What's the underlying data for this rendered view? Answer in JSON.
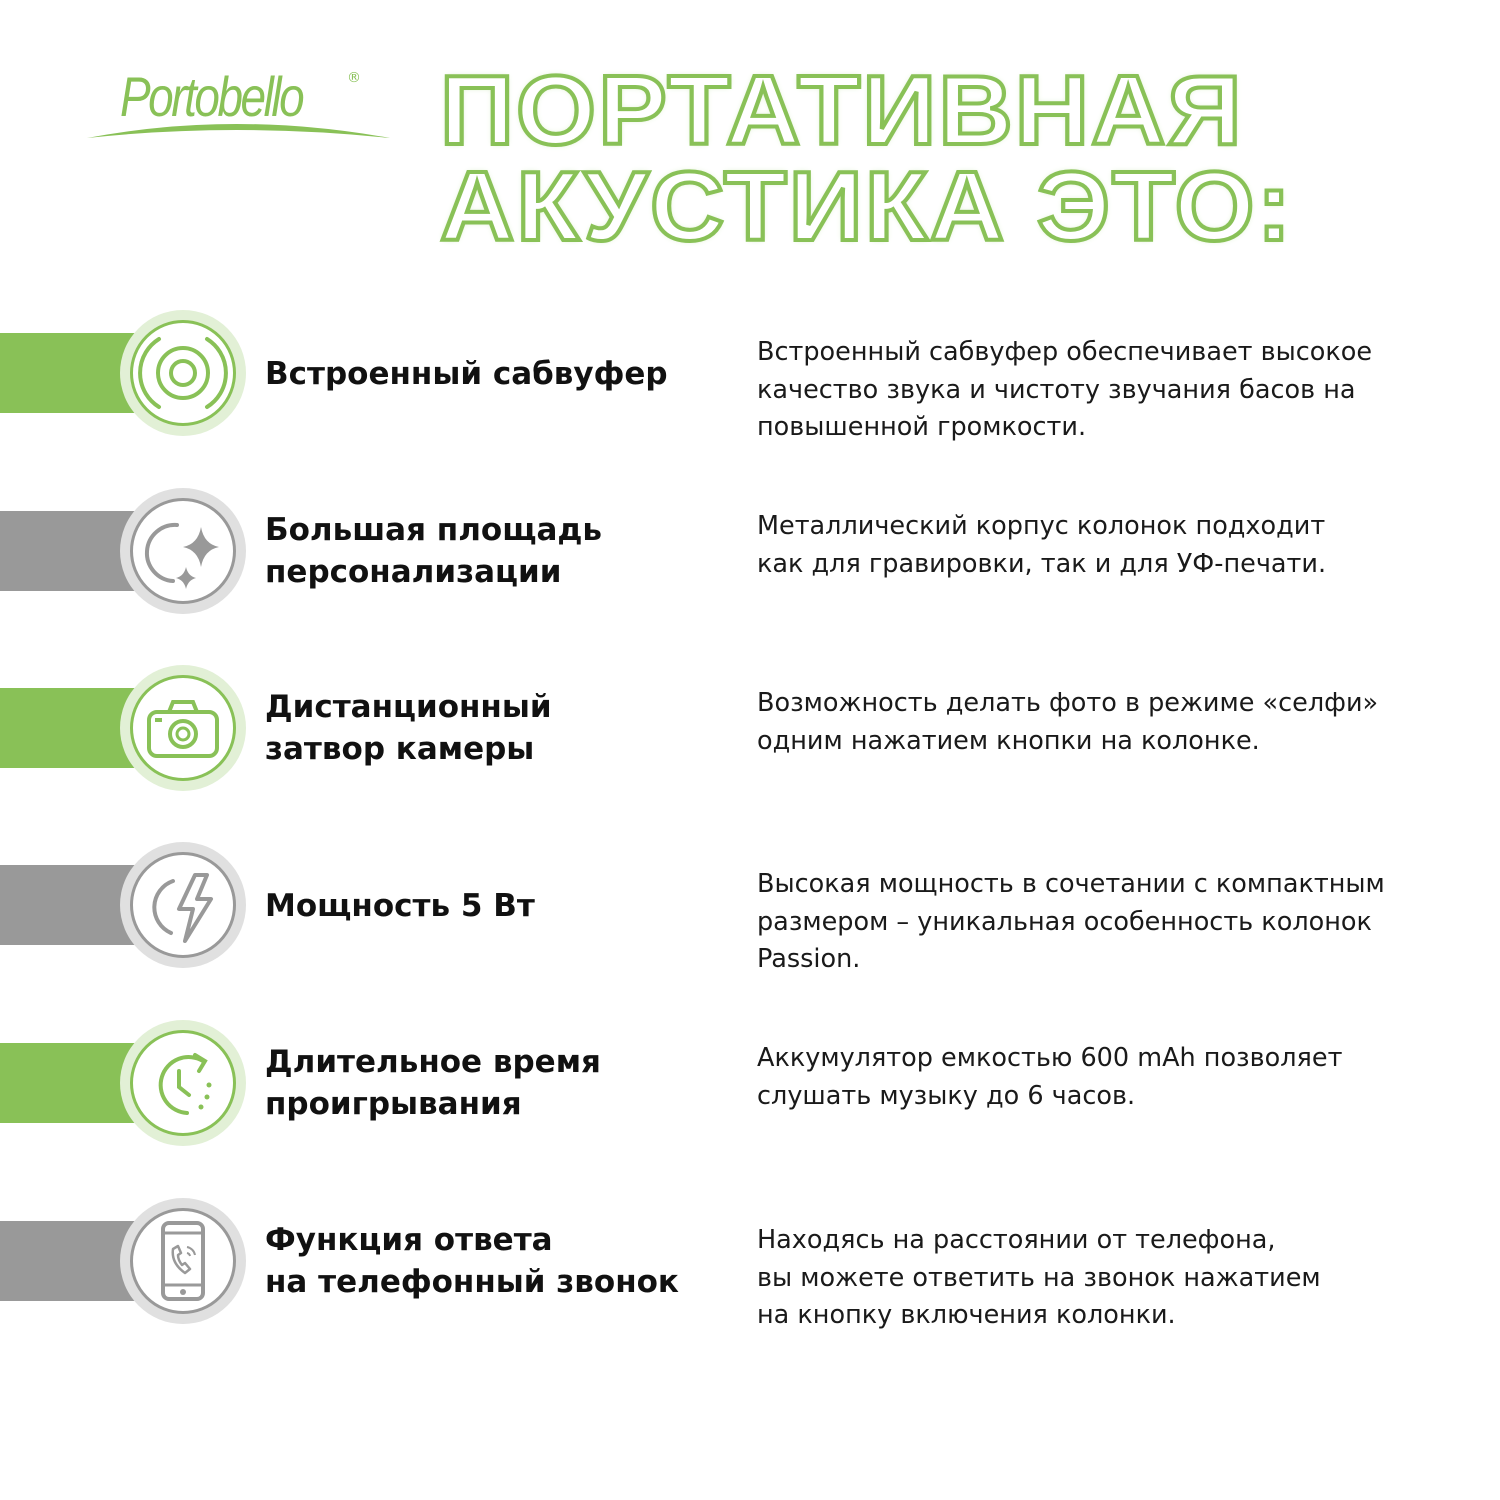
{
  "brand": {
    "logo_text": "Portobello",
    "registered": "®",
    "color": "#89c157"
  },
  "headline": {
    "line1": "ПОРТАТИВНАЯ",
    "line2": "АКУСТИКА ЭТО:"
  },
  "colors": {
    "green": "#89c157",
    "gray": "#999999"
  },
  "features": [
    {
      "icon": "subwoofer-icon",
      "title_lines": [
        "Встроенный сабвуфер"
      ],
      "desc_lines": [
        "Встроенный сабвуфер обеспечивает высокое",
        "качество звука и чистоту звучания басов на",
        "повышенной громкости."
      ]
    },
    {
      "icon": "sparkle-icon",
      "title_lines": [
        "Большая площадь",
        "персонализации"
      ],
      "desc_lines": [
        "Металлический корпус колонок подходит",
        "как для гравировки, так и для УФ-печати."
      ]
    },
    {
      "icon": "camera-icon",
      "title_lines": [
        "Дистанционный",
        "затвор камеры"
      ],
      "desc_lines": [
        "Возможность делать фото в режиме «селфи»",
        "одним нажатием кнопки на колонке."
      ]
    },
    {
      "icon": "lightning-icon",
      "title_lines": [
        "Мощность 5 Вт"
      ],
      "desc_lines": [
        "Высокая мощность в сочетании с компактным",
        "размером – уникальная особенность колонок",
        "Passion."
      ]
    },
    {
      "icon": "clock-icon",
      "title_lines": [
        "Длительное время",
        "проигрывания"
      ],
      "desc_lines": [
        "Аккумулятор емкостью 600 mAh позволяет",
        "слушать музыку до 6 часов."
      ]
    },
    {
      "icon": "phone-call-icon",
      "title_lines": [
        "Функция ответа",
        "на телефонный звонок"
      ],
      "desc_lines": [
        "Находясь на расстоянии от телефона,",
        "вы можете ответить на звонок нажатием",
        "на кнопку включения колонки."
      ]
    }
  ]
}
